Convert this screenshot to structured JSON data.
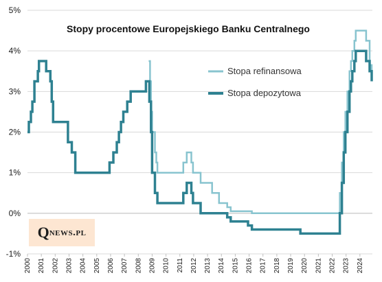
{
  "chart_data": {
    "type": "line",
    "title": "Stopy procentowe Europejskiego  Banku Centralnego",
    "xlabel": "",
    "ylabel": "",
    "xlim": [
      2000,
      2024.9
    ],
    "ylim": [
      -1,
      5
    ],
    "y_ticks": [
      "-1%",
      "0%",
      "1%",
      "2%",
      "3%",
      "4%",
      "5%"
    ],
    "x_ticks": [
      "2000",
      "2001",
      "2002",
      "2003",
      "2004",
      "2005",
      "2006",
      "2007",
      "2008",
      "2009",
      "2010",
      "2011",
      "2012",
      "2013",
      "2014",
      "2015",
      "2016",
      "2017",
      "2018",
      "2019",
      "2020",
      "2021",
      "2022",
      "2023",
      "2024"
    ],
    "grid": true,
    "legend_position": "top-right",
    "series": [
      {
        "name": "Stopa refinansowa",
        "color": "#88c4cf",
        "points": [
          [
            2008.75,
            3.75
          ],
          [
            2008.85,
            3.25
          ],
          [
            2008.92,
            2.5
          ],
          [
            2009.0,
            2.0
          ],
          [
            2009.2,
            1.5
          ],
          [
            2009.3,
            1.25
          ],
          [
            2009.38,
            1.0
          ],
          [
            2011.25,
            1.25
          ],
          [
            2011.5,
            1.5
          ],
          [
            2011.83,
            1.25
          ],
          [
            2011.95,
            1.0
          ],
          [
            2012.5,
            0.75
          ],
          [
            2013.33,
            0.5
          ],
          [
            2013.83,
            0.25
          ],
          [
            2014.42,
            0.15
          ],
          [
            2014.67,
            0.05
          ],
          [
            2016.2,
            0.0
          ],
          [
            2022.55,
            0.5
          ],
          [
            2022.7,
            1.25
          ],
          [
            2022.83,
            2.0
          ],
          [
            2022.95,
            2.5
          ],
          [
            2023.1,
            3.0
          ],
          [
            2023.25,
            3.5
          ],
          [
            2023.35,
            3.75
          ],
          [
            2023.45,
            4.0
          ],
          [
            2023.6,
            4.25
          ],
          [
            2023.7,
            4.5
          ],
          [
            2024.45,
            4.25
          ],
          [
            2024.7,
            3.65
          ],
          [
            2024.85,
            3.4
          ]
        ]
      },
      {
        "name": "Stopa depozytowa",
        "color": "#2e8191",
        "points": [
          [
            2000.0,
            2.0
          ],
          [
            2000.1,
            2.25
          ],
          [
            2000.25,
            2.5
          ],
          [
            2000.35,
            2.75
          ],
          [
            2000.5,
            3.25
          ],
          [
            2000.75,
            3.5
          ],
          [
            2000.83,
            3.75
          ],
          [
            2001.35,
            3.5
          ],
          [
            2001.65,
            3.25
          ],
          [
            2001.75,
            2.75
          ],
          [
            2001.85,
            2.25
          ],
          [
            2002.92,
            1.75
          ],
          [
            2003.2,
            1.5
          ],
          [
            2003.45,
            1.0
          ],
          [
            2005.92,
            1.25
          ],
          [
            2006.2,
            1.5
          ],
          [
            2006.45,
            1.75
          ],
          [
            2006.6,
            2.0
          ],
          [
            2006.75,
            2.25
          ],
          [
            2006.92,
            2.5
          ],
          [
            2007.2,
            2.75
          ],
          [
            2007.45,
            3.0
          ],
          [
            2008.55,
            3.25
          ],
          [
            2008.8,
            2.75
          ],
          [
            2008.92,
            2.0
          ],
          [
            2009.0,
            1.0
          ],
          [
            2009.2,
            0.5
          ],
          [
            2009.38,
            0.25
          ],
          [
            2011.25,
            0.5
          ],
          [
            2011.5,
            0.75
          ],
          [
            2011.83,
            0.5
          ],
          [
            2011.95,
            0.25
          ],
          [
            2012.5,
            0.0
          ],
          [
            2014.42,
            -0.1
          ],
          [
            2014.67,
            -0.2
          ],
          [
            2015.92,
            -0.3
          ],
          [
            2016.2,
            -0.4
          ],
          [
            2019.7,
            -0.5
          ],
          [
            2022.55,
            0.0
          ],
          [
            2022.7,
            0.75
          ],
          [
            2022.83,
            1.5
          ],
          [
            2022.95,
            2.0
          ],
          [
            2023.1,
            2.5
          ],
          [
            2023.25,
            3.0
          ],
          [
            2023.35,
            3.25
          ],
          [
            2023.45,
            3.5
          ],
          [
            2023.6,
            3.75
          ],
          [
            2023.7,
            4.0
          ],
          [
            2024.45,
            3.75
          ],
          [
            2024.7,
            3.5
          ],
          [
            2024.85,
            3.25
          ]
        ]
      }
    ]
  },
  "logo": {
    "q": "Q",
    "rest": "news.pl"
  }
}
